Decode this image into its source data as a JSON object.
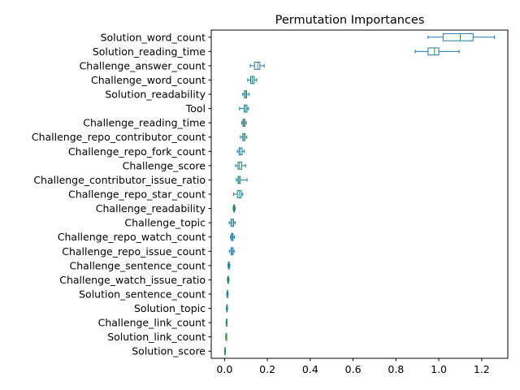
{
  "chart_data": {
    "type": "boxplot",
    "orientation": "horizontal",
    "title": "Permutation Importances",
    "xlabel": "",
    "ylabel": "",
    "xlim": [
      -0.062,
      1.322
    ],
    "xticks": [
      0.0,
      0.2,
      0.4,
      0.6,
      0.8,
      1.0,
      1.2
    ],
    "xtick_labels": [
      "0.0",
      "0.2",
      "0.4",
      "0.6",
      "0.8",
      "1.0",
      "1.2"
    ],
    "grid": false,
    "box_color": "#1f77b4",
    "median_color": "#2ca02c",
    "categories": [
      "Solution_word_count",
      "Solution_reading_time",
      "Challenge_answer_count",
      "Challenge_word_count",
      "Solution_readability",
      "Tool",
      "Challenge_reading_time",
      "Challenge_repo_contributor_count",
      "Challenge_repo_fork_count",
      "Challenge_score",
      "Challenge_contributor_issue_ratio",
      "Challenge_repo_star_count",
      "Challenge_readability",
      "Challenge_topic",
      "Challenge_repo_watch_count",
      "Challenge_repo_issue_count",
      "Challenge_sentence_count",
      "Challenge_watch_issue_ratio",
      "Solution_sentence_count",
      "Solution_topic",
      "Challenge_link_count",
      "Solution_link_count",
      "Solution_score"
    ],
    "boxes": [
      {
        "whislo": 0.95,
        "q1": 1.02,
        "med": 1.1,
        "q3": 1.16,
        "whishi": 1.26
      },
      {
        "whislo": 0.89,
        "q1": 0.95,
        "med": 0.98,
        "q3": 1.0,
        "whishi": 1.095
      },
      {
        "whislo": 0.12,
        "q1": 0.14,
        "med": 0.155,
        "q3": 0.165,
        "whishi": 0.185
      },
      {
        "whislo": 0.108,
        "q1": 0.122,
        "med": 0.13,
        "q3": 0.138,
        "whishi": 0.15
      },
      {
        "whislo": 0.085,
        "q1": 0.093,
        "med": 0.098,
        "q3": 0.103,
        "whishi": 0.115
      },
      {
        "whislo": 0.07,
        "q1": 0.092,
        "med": 0.098,
        "q3": 0.105,
        "whishi": 0.112
      },
      {
        "whislo": 0.08,
        "q1": 0.086,
        "med": 0.09,
        "q3": 0.095,
        "whishi": 0.102
      },
      {
        "whislo": 0.074,
        "q1": 0.085,
        "med": 0.09,
        "q3": 0.096,
        "whishi": 0.104
      },
      {
        "whislo": 0.06,
        "q1": 0.068,
        "med": 0.074,
        "q3": 0.082,
        "whishi": 0.092
      },
      {
        "whislo": 0.052,
        "q1": 0.063,
        "med": 0.07,
        "q3": 0.08,
        "whishi": 0.098
      },
      {
        "whislo": 0.055,
        "q1": 0.063,
        "med": 0.068,
        "q3": 0.074,
        "whishi": 0.105
      },
      {
        "whislo": 0.042,
        "q1": 0.06,
        "med": 0.07,
        "q3": 0.078,
        "whishi": 0.085
      },
      {
        "whislo": 0.04,
        "q1": 0.042,
        "med": 0.045,
        "q3": 0.047,
        "whishi": 0.05
      },
      {
        "whislo": 0.022,
        "q1": 0.03,
        "med": 0.036,
        "q3": 0.042,
        "whishi": 0.05
      },
      {
        "whislo": 0.028,
        "q1": 0.032,
        "med": 0.036,
        "q3": 0.04,
        "whishi": 0.046
      },
      {
        "whislo": 0.022,
        "q1": 0.03,
        "med": 0.035,
        "q3": 0.04,
        "whishi": 0.045
      },
      {
        "whislo": 0.016,
        "q1": 0.018,
        "med": 0.02,
        "q3": 0.022,
        "whishi": 0.025
      },
      {
        "whislo": 0.013,
        "q1": 0.015,
        "med": 0.017,
        "q3": 0.019,
        "whishi": 0.021
      },
      {
        "whislo": 0.01,
        "q1": 0.012,
        "med": 0.013,
        "q3": 0.015,
        "whishi": 0.017
      },
      {
        "whislo": 0.008,
        "q1": 0.01,
        "med": 0.011,
        "q3": 0.012,
        "whishi": 0.014
      },
      {
        "whislo": 0.007,
        "q1": 0.009,
        "med": 0.01,
        "q3": 0.011,
        "whishi": 0.012
      },
      {
        "whislo": 0.005,
        "q1": 0.007,
        "med": 0.008,
        "q3": 0.009,
        "whishi": 0.01
      },
      {
        "whislo": 0.0,
        "q1": 0.001,
        "med": 0.002,
        "q3": 0.003,
        "whishi": 0.004
      }
    ]
  }
}
